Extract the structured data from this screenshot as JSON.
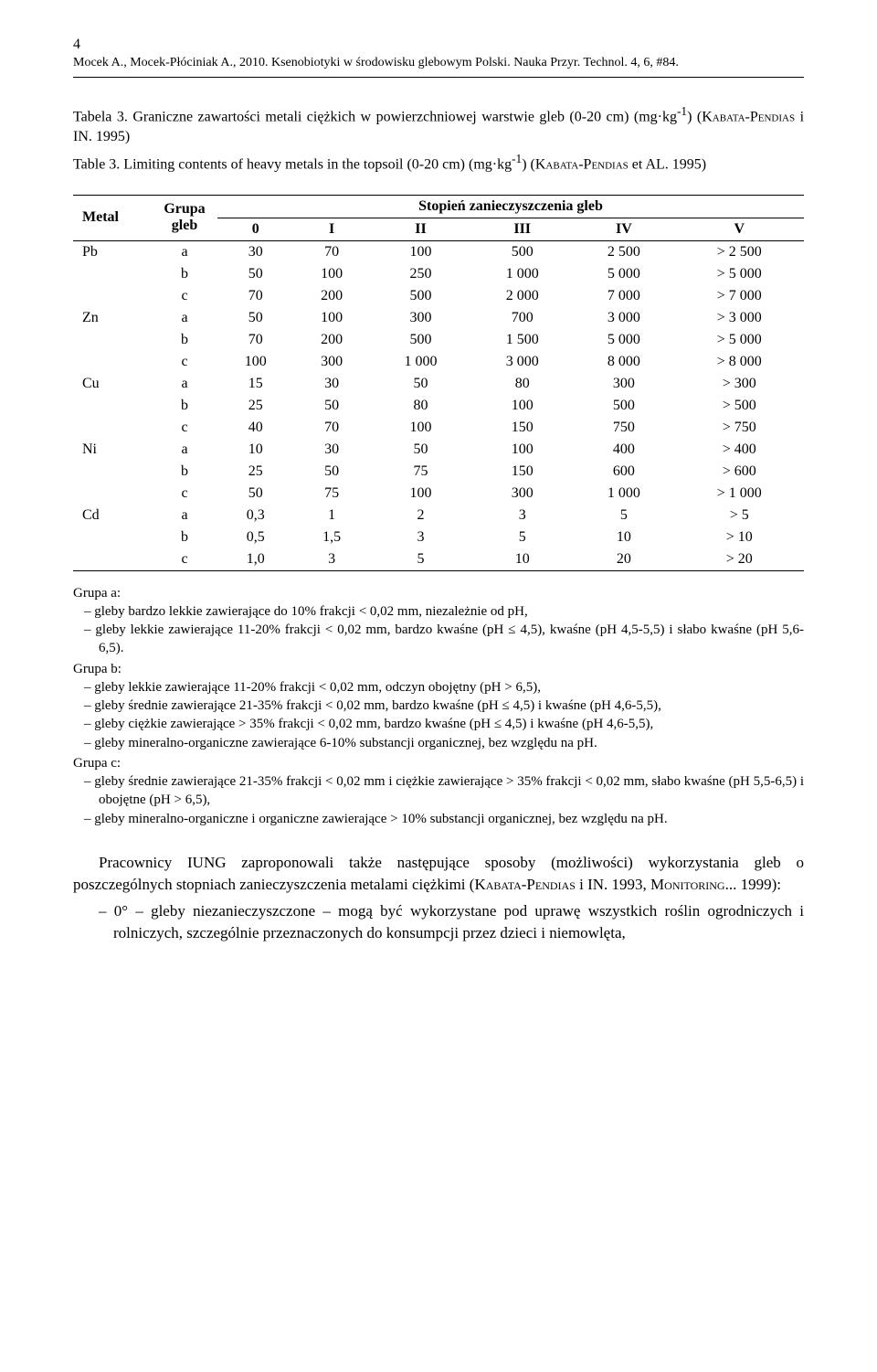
{
  "page_number": "4",
  "header": "Mocek A., Mocek-Płóciniak A., 2010. Ksenobiotyki w środowisku glebowym Polski. Nauka Przyr. Technol. 4, 6, #84.",
  "caption_pl_prefix": "Tabela 3. Graniczne zawartości metali ciężkich w powierzchniowej warstwie gleb (0-20 cm) (mg·kg",
  "caption_pl_sup": "-1",
  "caption_pl_suffix": ") (",
  "caption_pl_sc": "Kabata-Pendias",
  "caption_pl_end": " i IN. 1995)",
  "caption_en_prefix": "Table 3. Limiting contents of heavy metals in the topsoil (0-20 cm) (mg·kg",
  "caption_en_sup": "-1",
  "caption_en_suffix": ") (",
  "caption_en_sc": "Kabata-Pendias",
  "caption_en_end": " et AL. 1995)",
  "th_metal": "Metal",
  "th_group_l1": "Grupa",
  "th_group_l2": "gleb",
  "th_stopien": "Stopień zanieczyszczenia gleb",
  "levels": [
    "0",
    "I",
    "II",
    "III",
    "IV",
    "V"
  ],
  "table": [
    {
      "metal": "Pb",
      "rows": [
        {
          "g": "a",
          "v": [
            "30",
            "70",
            "100",
            "500",
            "2 500",
            "> 2 500"
          ]
        },
        {
          "g": "b",
          "v": [
            "50",
            "100",
            "250",
            "1 000",
            "5 000",
            "> 5 000"
          ]
        },
        {
          "g": "c",
          "v": [
            "70",
            "200",
            "500",
            "2 000",
            "7 000",
            "> 7 000"
          ]
        }
      ]
    },
    {
      "metal": "Zn",
      "rows": [
        {
          "g": "a",
          "v": [
            "50",
            "100",
            "300",
            "700",
            "3 000",
            "> 3 000"
          ]
        },
        {
          "g": "b",
          "v": [
            "70",
            "200",
            "500",
            "1 500",
            "5 000",
            "> 5 000"
          ]
        },
        {
          "g": "c",
          "v": [
            "100",
            "300",
            "1 000",
            "3 000",
            "8 000",
            "> 8 000"
          ]
        }
      ]
    },
    {
      "metal": "Cu",
      "rows": [
        {
          "g": "a",
          "v": [
            "15",
            "30",
            "50",
            "80",
            "300",
            "> 300"
          ]
        },
        {
          "g": "b",
          "v": [
            "25",
            "50",
            "80",
            "100",
            "500",
            "> 500"
          ]
        },
        {
          "g": "c",
          "v": [
            "40",
            "70",
            "100",
            "150",
            "750",
            "> 750"
          ]
        }
      ]
    },
    {
      "metal": "Ni",
      "rows": [
        {
          "g": "a",
          "v": [
            "10",
            "30",
            "50",
            "100",
            "400",
            "> 400"
          ]
        },
        {
          "g": "b",
          "v": [
            "25",
            "50",
            "75",
            "150",
            "600",
            "> 600"
          ]
        },
        {
          "g": "c",
          "v": [
            "50",
            "75",
            "100",
            "300",
            "1 000",
            "> 1 000"
          ]
        }
      ]
    },
    {
      "metal": "Cd",
      "rows": [
        {
          "g": "a",
          "v": [
            "0,3",
            "1",
            "2",
            "3",
            "5",
            "> 5"
          ]
        },
        {
          "g": "b",
          "v": [
            "0,5",
            "1,5",
            "3",
            "5",
            "10",
            "> 10"
          ]
        },
        {
          "g": "c",
          "v": [
            "1,0",
            "3",
            "5",
            "10",
            "20",
            "> 20"
          ]
        }
      ]
    }
  ],
  "notes": {
    "a_label": "Grupa a:",
    "a_items": [
      "–  gleby bardzo lekkie zawierające do 10% frakcji < 0,02 mm, niezależnie od pH,",
      "–  gleby lekkie zawierające 11-20% frakcji < 0,02 mm, bardzo kwaśne (pH ≤ 4,5), kwaśne (pH 4,5-5,5) i słabo kwaśne (pH 5,6-6,5)."
    ],
    "b_label": "Grupa b:",
    "b_items": [
      "–  gleby lekkie zawierające 11-20% frakcji < 0,02 mm, odczyn obojętny (pH > 6,5),",
      "–  gleby średnie zawierające 21-35% frakcji < 0,02 mm, bardzo kwaśne (pH ≤ 4,5) i kwaśne (pH 4,6-5,5),",
      "–  gleby ciężkie zawierające > 35% frakcji < 0,02 mm, bardzo kwaśne (pH ≤ 4,5) i kwaśne (pH 4,6-5,5),",
      "–  gleby mineralno-organiczne zawierające 6-10% substancji organicznej, bez względu na pH."
    ],
    "c_label": "Grupa c:",
    "c_items": [
      "–  gleby średnie zawierające 21-35% frakcji < 0,02 mm i ciężkie zawierające > 35% frakcji < 0,02 mm, słabo kwaśne (pH 5,5-6,5) i obojętne (pH > 6,5),",
      "–  gleby mineralno-organiczne i organiczne zawierające > 10% substancji organicznej, bez względu na pH."
    ]
  },
  "para_prefix": "Pracownicy IUNG zaproponowali także następujące sposoby (możliwości) wykorzystania gleb o poszczególnych stopniach zanieczyszczenia metalami ciężkimi (",
  "para_sc1": "Kabata-Pendias",
  "para_mid": " i IN. 1993, ",
  "para_sc2": "Monitoring",
  "para_end": "... 1999):",
  "bullet": "–  0° – gleby niezanieczyszczone – mogą być wykorzystane pod uprawę wszystkich roślin ogrodniczych i rolniczych, szczególnie przeznaczonych do konsumpcji przez dzieci i niemowlęta,"
}
